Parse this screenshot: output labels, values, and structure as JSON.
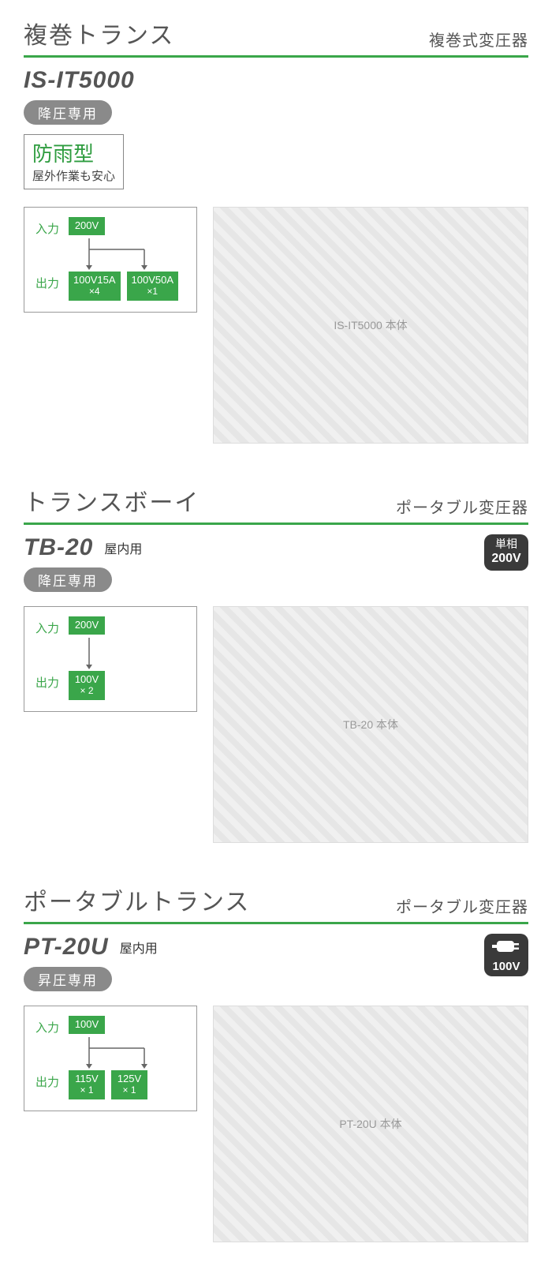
{
  "colors": {
    "accent_green": "#3aa64a",
    "underline_green": "#3aa64a",
    "chip_green": "#3aa64a",
    "feature_text_green": "#2e9c3f",
    "pill_gray": "#8a8a8a",
    "badge_dark": "#3a3a3a",
    "io_label_green": "#3aa64a",
    "border_gray": "#9a9a9a"
  },
  "products": [
    {
      "category_title": "複巻トランス",
      "category_subtitle": "複巻式変圧器",
      "model": "IS-IT5000",
      "type_pill": "降圧専用",
      "feature": {
        "main": "防雨型",
        "sub": "屋外作業も安心"
      },
      "io": {
        "input_label": "入力",
        "input_chip": "200V",
        "output_label": "出力",
        "outputs": [
          {
            "line1": "100V15A",
            "line2": "×4"
          },
          {
            "line1": "100V50A",
            "line2": "×1"
          }
        ],
        "arrow_branches": 2
      },
      "image_alt": "IS-IT5000 本体"
    },
    {
      "category_title": "トランスボーイ",
      "category_subtitle": "ポータブル変圧器",
      "model": "TB-20",
      "usage": "屋内用",
      "type_pill": "降圧専用",
      "phase_badge": {
        "line1": "単相",
        "line2": "200V"
      },
      "io": {
        "input_label": "入力",
        "input_chip": "200V",
        "output_label": "出力",
        "outputs": [
          {
            "line1": "100V",
            "line2": "× 2"
          }
        ],
        "arrow_branches": 1
      },
      "image_alt": "TB-20 本体"
    },
    {
      "category_title": "ポータブルトランス",
      "category_subtitle": "ポータブル変圧器",
      "model": "PT-20U",
      "usage": "屋内用",
      "type_pill": "昇圧専用",
      "plug_badge": {
        "voltage": "100V"
      },
      "io": {
        "input_label": "入力",
        "input_chip": "100V",
        "output_label": "出力",
        "outputs": [
          {
            "line1": "115V",
            "line2": "× 1"
          },
          {
            "line1": "125V",
            "line2": "× 1"
          }
        ],
        "arrow_branches": 2
      },
      "image_alt": "PT-20U 本体"
    }
  ]
}
